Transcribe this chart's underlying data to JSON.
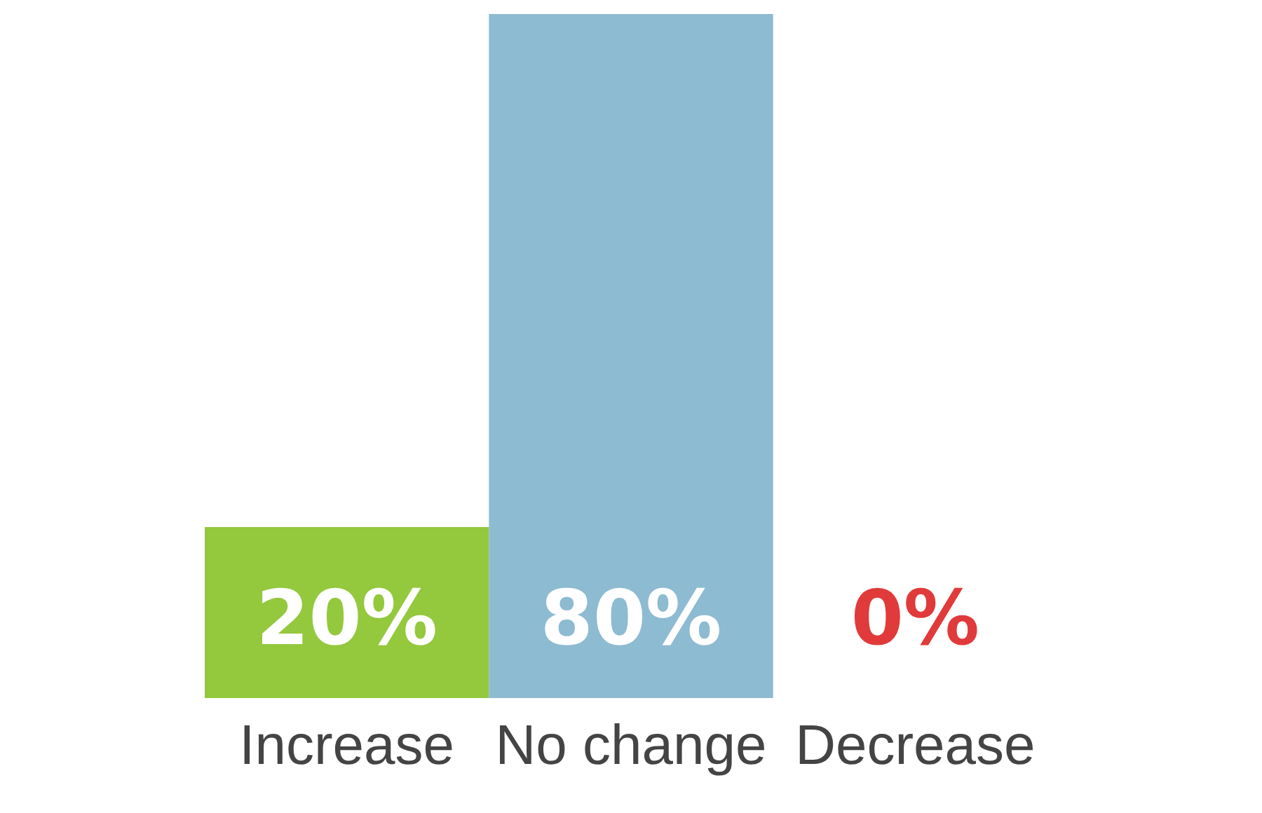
{
  "chart_data": {
    "type": "bar",
    "categories": [
      "Increase",
      "No change",
      "Decrease"
    ],
    "values": [
      20,
      80,
      0
    ],
    "colors": [
      "#94c83d",
      "#8dbbd1",
      "#e03a3a"
    ],
    "value_labels": [
      "20%",
      "80%",
      "0%"
    ]
  }
}
